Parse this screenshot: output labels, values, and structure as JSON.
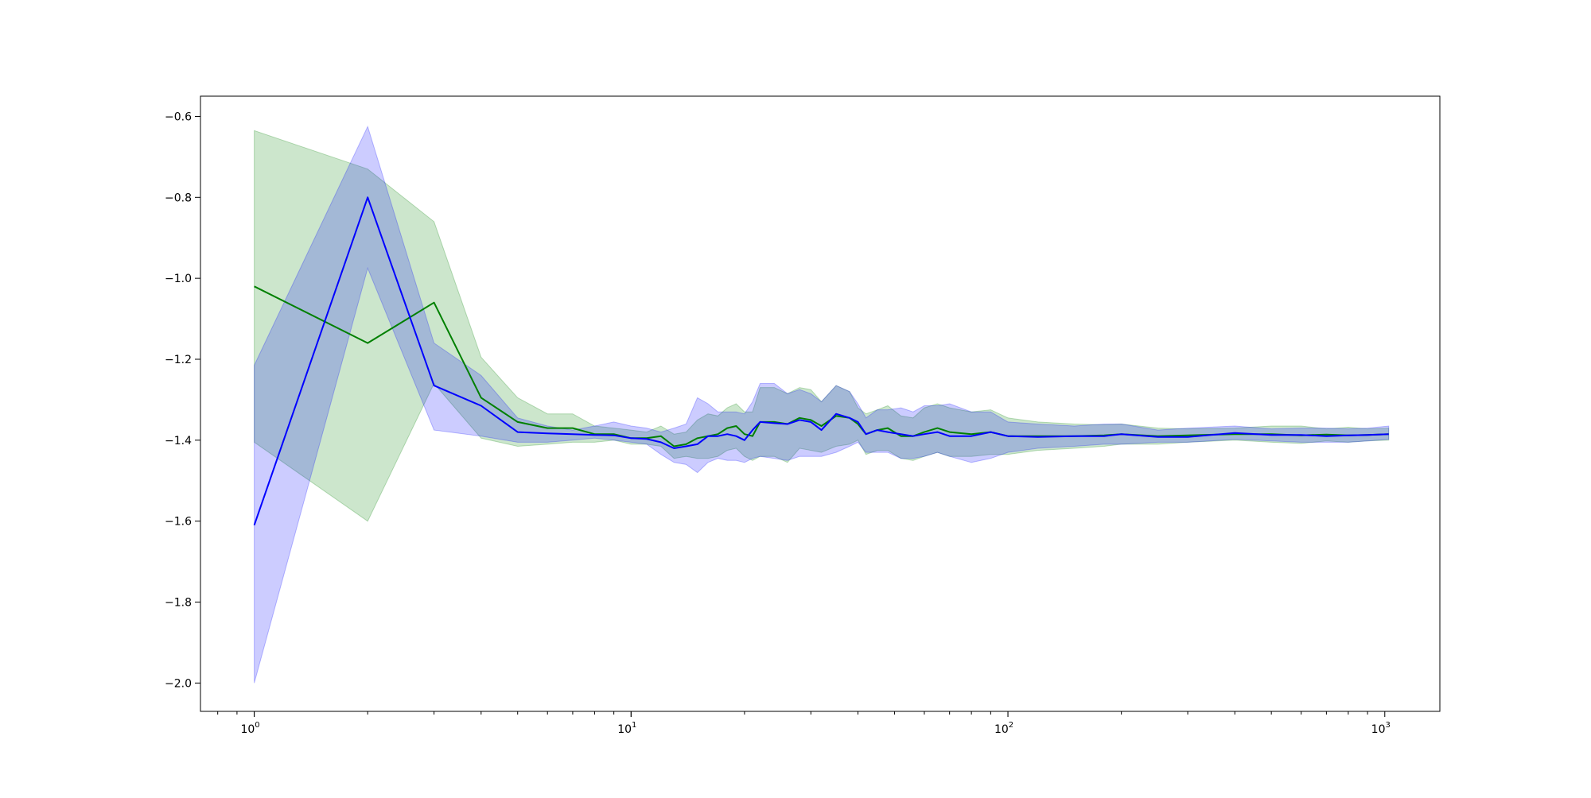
{
  "chart_data": {
    "type": "line",
    "title": "",
    "xlabel": "",
    "ylabel": "",
    "xscale": "log",
    "xlim": [
      0.72,
      1400
    ],
    "ylim": [
      -2.07,
      -0.55
    ],
    "grid": false,
    "legend": "none",
    "x_ticks": [
      {
        "value": 1,
        "base": "10",
        "exp": "0"
      },
      {
        "value": 10,
        "base": "10",
        "exp": "1"
      },
      {
        "value": 100,
        "base": "10",
        "exp": "2"
      },
      {
        "value": 1000,
        "base": "10",
        "exp": "3"
      }
    ],
    "y_ticks": [
      {
        "value": -0.6,
        "label": "−0.6"
      },
      {
        "value": -0.8,
        "label": "−0.8"
      },
      {
        "value": -1.0,
        "label": "−1.0"
      },
      {
        "value": -1.2,
        "label": "−1.2"
      },
      {
        "value": -1.4,
        "label": "−1.4"
      },
      {
        "value": -1.6,
        "label": "−1.6"
      },
      {
        "value": -1.8,
        "label": "−1.8"
      },
      {
        "value": -2.0,
        "label": "−2.0"
      }
    ],
    "series": [
      {
        "color": "#008000",
        "band_color": "#008000",
        "x": [
          1,
          2,
          3,
          4,
          5,
          6,
          7,
          8,
          9,
          10,
          11,
          12,
          13,
          14,
          15,
          16,
          17,
          18,
          19,
          20,
          21,
          22,
          24,
          26,
          28,
          30,
          32,
          35,
          38,
          40,
          42,
          45,
          48,
          52,
          56,
          60,
          65,
          70,
          80,
          90,
          100,
          120,
          150,
          180,
          200,
          250,
          300,
          400,
          500,
          600,
          700,
          800,
          900,
          1024
        ],
        "mean": [
          -1.02,
          -1.16,
          -1.06,
          -1.295,
          -1.355,
          -1.37,
          -1.37,
          -1.385,
          -1.385,
          -1.395,
          -1.395,
          -1.39,
          -1.415,
          -1.41,
          -1.395,
          -1.39,
          -1.385,
          -1.37,
          -1.365,
          -1.385,
          -1.39,
          -1.355,
          -1.355,
          -1.36,
          -1.345,
          -1.35,
          -1.365,
          -1.34,
          -1.345,
          -1.36,
          -1.385,
          -1.375,
          -1.37,
          -1.39,
          -1.39,
          -1.38,
          -1.37,
          -1.38,
          -1.385,
          -1.38,
          -1.39,
          -1.39,
          -1.39,
          -1.388,
          -1.385,
          -1.39,
          -1.388,
          -1.385,
          -1.385,
          -1.388,
          -1.386,
          -1.388,
          -1.387,
          -1.385
        ],
        "upper": [
          -0.635,
          -0.73,
          -0.86,
          -1.195,
          -1.295,
          -1.335,
          -1.335,
          -1.365,
          -1.37,
          -1.375,
          -1.38,
          -1.365,
          -1.385,
          -1.38,
          -1.35,
          -1.335,
          -1.34,
          -1.32,
          -1.31,
          -1.33,
          -1.33,
          -1.27,
          -1.27,
          -1.285,
          -1.27,
          -1.275,
          -1.305,
          -1.265,
          -1.28,
          -1.32,
          -1.335,
          -1.325,
          -1.315,
          -1.34,
          -1.345,
          -1.32,
          -1.31,
          -1.32,
          -1.33,
          -1.325,
          -1.345,
          -1.355,
          -1.36,
          -1.362,
          -1.36,
          -1.37,
          -1.372,
          -1.37,
          -1.365,
          -1.365,
          -1.372,
          -1.368,
          -1.372,
          -1.37
        ],
        "lower": [
          -1.405,
          -1.6,
          -1.26,
          -1.395,
          -1.415,
          -1.41,
          -1.405,
          -1.405,
          -1.4,
          -1.41,
          -1.41,
          -1.415,
          -1.445,
          -1.44,
          -1.445,
          -1.445,
          -1.44,
          -1.425,
          -1.42,
          -1.44,
          -1.45,
          -1.44,
          -1.44,
          -1.455,
          -1.42,
          -1.425,
          -1.43,
          -1.415,
          -1.41,
          -1.4,
          -1.435,
          -1.425,
          -1.425,
          -1.445,
          -1.45,
          -1.44,
          -1.43,
          -1.44,
          -1.44,
          -1.435,
          -1.435,
          -1.425,
          -1.42,
          -1.415,
          -1.41,
          -1.41,
          -1.405,
          -1.4,
          -1.405,
          -1.408,
          -1.402,
          -1.405,
          -1.402,
          -1.4
        ]
      },
      {
        "color": "#0000ff",
        "band_color": "#0000ff",
        "x": [
          1,
          2,
          3,
          4,
          5,
          6,
          7,
          8,
          9,
          10,
          11,
          12,
          13,
          14,
          15,
          16,
          17,
          18,
          19,
          20,
          21,
          22,
          24,
          26,
          28,
          30,
          32,
          35,
          38,
          40,
          42,
          45,
          48,
          52,
          56,
          60,
          65,
          70,
          80,
          90,
          100,
          120,
          150,
          180,
          200,
          250,
          300,
          400,
          500,
          600,
          700,
          800,
          900,
          1024
        ],
        "mean": [
          -1.61,
          -0.8,
          -1.265,
          -1.315,
          -1.38,
          -1.383,
          -1.385,
          -1.387,
          -1.388,
          -1.395,
          -1.397,
          -1.405,
          -1.42,
          -1.415,
          -1.41,
          -1.39,
          -1.39,
          -1.385,
          -1.39,
          -1.4,
          -1.375,
          -1.355,
          -1.358,
          -1.36,
          -1.35,
          -1.355,
          -1.375,
          -1.335,
          -1.345,
          -1.355,
          -1.385,
          -1.375,
          -1.38,
          -1.385,
          -1.39,
          -1.385,
          -1.38,
          -1.39,
          -1.39,
          -1.38,
          -1.39,
          -1.392,
          -1.39,
          -1.39,
          -1.385,
          -1.392,
          -1.392,
          -1.382,
          -1.387,
          -1.387,
          -1.39,
          -1.388,
          -1.387,
          -1.385
        ],
        "upper": [
          -1.215,
          -0.625,
          -1.16,
          -1.24,
          -1.345,
          -1.365,
          -1.375,
          -1.365,
          -1.355,
          -1.365,
          -1.37,
          -1.38,
          -1.37,
          -1.36,
          -1.295,
          -1.31,
          -1.33,
          -1.33,
          -1.33,
          -1.335,
          -1.305,
          -1.26,
          -1.26,
          -1.285,
          -1.275,
          -1.285,
          -1.305,
          -1.265,
          -1.28,
          -1.31,
          -1.345,
          -1.325,
          -1.325,
          -1.32,
          -1.33,
          -1.315,
          -1.315,
          -1.31,
          -1.33,
          -1.33,
          -1.355,
          -1.36,
          -1.365,
          -1.36,
          -1.36,
          -1.375,
          -1.37,
          -1.365,
          -1.372,
          -1.37,
          -1.37,
          -1.372,
          -1.37,
          -1.365
        ],
        "lower": [
          -2.0,
          -0.975,
          -1.375,
          -1.39,
          -1.405,
          -1.405,
          -1.4,
          -1.395,
          -1.4,
          -1.405,
          -1.41,
          -1.435,
          -1.455,
          -1.46,
          -1.48,
          -1.455,
          -1.445,
          -1.45,
          -1.45,
          -1.455,
          -1.445,
          -1.44,
          -1.445,
          -1.45,
          -1.44,
          -1.44,
          -1.44,
          -1.43,
          -1.415,
          -1.405,
          -1.43,
          -1.43,
          -1.43,
          -1.445,
          -1.445,
          -1.44,
          -1.43,
          -1.44,
          -1.455,
          -1.445,
          -1.43,
          -1.42,
          -1.415,
          -1.41,
          -1.41,
          -1.405,
          -1.405,
          -1.398,
          -1.402,
          -1.405,
          -1.405,
          -1.405,
          -1.402,
          -1.398
        ]
      }
    ]
  }
}
